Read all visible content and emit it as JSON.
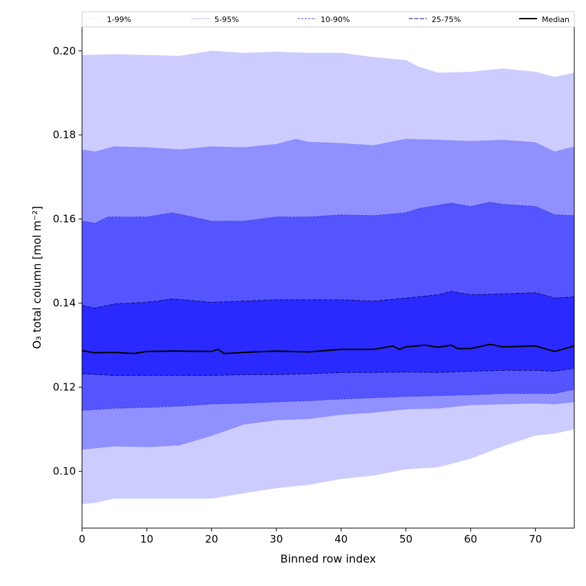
{
  "chart_data": {
    "type": "area",
    "xlabel": "Binned row index",
    "ylabel": "O₃ total column [mol m⁻²]",
    "xlim": [
      0,
      76
    ],
    "ylim": [
      0.0865,
      0.2057
    ],
    "xticks": [
      0,
      10,
      20,
      30,
      40,
      50,
      60,
      70
    ],
    "yticks": [
      0.1,
      0.12,
      0.14,
      0.16,
      0.18,
      0.2
    ],
    "ytick_labels": [
      "0.10",
      "0.12",
      "0.14",
      "0.16",
      "0.18",
      "0.20"
    ],
    "legend_placement": "top, horizontal",
    "bands": [
      {
        "name": "1-99%",
        "color": "#ccccff",
        "line_color": "#d8d8ff",
        "dash": "1,2",
        "lower": [
          [
            0,
            0.0922
          ],
          [
            2,
            0.0925
          ],
          [
            5,
            0.0935
          ],
          [
            10,
            0.0935
          ],
          [
            15,
            0.0935
          ],
          [
            20,
            0.0935
          ],
          [
            25,
            0.0948
          ],
          [
            30,
            0.096
          ],
          [
            35,
            0.0968
          ],
          [
            40,
            0.0982
          ],
          [
            45,
            0.099
          ],
          [
            50,
            0.1005
          ],
          [
            55,
            0.101
          ],
          [
            60,
            0.103
          ],
          [
            65,
            0.106
          ],
          [
            70,
            0.1085
          ],
          [
            73,
            0.109
          ],
          [
            76,
            0.11
          ]
        ],
        "upper": [
          [
            0,
            0.199
          ],
          [
            5,
            0.1992
          ],
          [
            10,
            0.199
          ],
          [
            15,
            0.1988
          ],
          [
            20,
            0.2
          ],
          [
            25,
            0.1995
          ],
          [
            30,
            0.1998
          ],
          [
            35,
            0.1995
          ],
          [
            40,
            0.1995
          ],
          [
            45,
            0.1985
          ],
          [
            50,
            0.1978
          ],
          [
            52,
            0.1962
          ],
          [
            55,
            0.1948
          ],
          [
            60,
            0.195
          ],
          [
            65,
            0.1958
          ],
          [
            70,
            0.195
          ],
          [
            73,
            0.1938
          ],
          [
            76,
            0.1948
          ]
        ]
      },
      {
        "name": "5-95%",
        "color": "#9090ff",
        "line_color": "#7070ff",
        "dash": "1,1.5",
        "lower": [
          [
            0,
            0.1052
          ],
          [
            5,
            0.106
          ],
          [
            10,
            0.1058
          ],
          [
            15,
            0.1062
          ],
          [
            20,
            0.1085
          ],
          [
            25,
            0.1112
          ],
          [
            30,
            0.1122
          ],
          [
            35,
            0.1125
          ],
          [
            40,
            0.1135
          ],
          [
            45,
            0.114
          ],
          [
            50,
            0.1148
          ],
          [
            55,
            0.115
          ],
          [
            60,
            0.1158
          ],
          [
            65,
            0.116
          ],
          [
            70,
            0.1162
          ],
          [
            73,
            0.116
          ],
          [
            76,
            0.1165
          ]
        ],
        "upper": [
          [
            0,
            0.1765
          ],
          [
            2,
            0.176
          ],
          [
            5,
            0.1772
          ],
          [
            10,
            0.177
          ],
          [
            15,
            0.1765
          ],
          [
            20,
            0.1772
          ],
          [
            25,
            0.177
          ],
          [
            30,
            0.1778
          ],
          [
            33,
            0.179
          ],
          [
            35,
            0.1783
          ],
          [
            40,
            0.178
          ],
          [
            45,
            0.1775
          ],
          [
            50,
            0.179
          ],
          [
            55,
            0.1788
          ],
          [
            60,
            0.1785
          ],
          [
            65,
            0.1788
          ],
          [
            70,
            0.1782
          ],
          [
            73,
            0.176
          ],
          [
            76,
            0.1772
          ]
        ]
      },
      {
        "name": "10-90%",
        "color": "#5555ff",
        "line_color": "#3a3ad0",
        "dash": "3,2",
        "lower": [
          [
            0,
            0.1145
          ],
          [
            5,
            0.115
          ],
          [
            10,
            0.1152
          ],
          [
            15,
            0.1155
          ],
          [
            20,
            0.116
          ],
          [
            25,
            0.1162
          ],
          [
            30,
            0.1165
          ],
          [
            35,
            0.1168
          ],
          [
            40,
            0.1172
          ],
          [
            45,
            0.1175
          ],
          [
            50,
            0.1178
          ],
          [
            55,
            0.118
          ],
          [
            60,
            0.1182
          ],
          [
            65,
            0.1185
          ],
          [
            70,
            0.1185
          ],
          [
            73,
            0.1185
          ],
          [
            76,
            0.1195
          ]
        ],
        "upper": [
          [
            0,
            0.1595
          ],
          [
            2,
            0.159
          ],
          [
            4,
            0.1605
          ],
          [
            10,
            0.1605
          ],
          [
            14,
            0.1615
          ],
          [
            20,
            0.1595
          ],
          [
            25,
            0.1595
          ],
          [
            30,
            0.1605
          ],
          [
            35,
            0.1605
          ],
          [
            40,
            0.161
          ],
          [
            45,
            0.1608
          ],
          [
            50,
            0.1615
          ],
          [
            52,
            0.1625
          ],
          [
            57,
            0.1638
          ],
          [
            60,
            0.163
          ],
          [
            63,
            0.164
          ],
          [
            65,
            0.1635
          ],
          [
            70,
            0.163
          ],
          [
            73,
            0.161
          ],
          [
            76,
            0.1608
          ]
        ]
      },
      {
        "name": "25-75%",
        "color": "#2a2aff",
        "line_color": "#0a0a70",
        "dash": "6,2",
        "lower": [
          [
            0,
            0.1232
          ],
          [
            5,
            0.1228
          ],
          [
            10,
            0.1228
          ],
          [
            15,
            0.1228
          ],
          [
            20,
            0.1228
          ],
          [
            25,
            0.123
          ],
          [
            30,
            0.123
          ],
          [
            35,
            0.1232
          ],
          [
            40,
            0.1235
          ],
          [
            45,
            0.1235
          ],
          [
            50,
            0.1236
          ],
          [
            55,
            0.1235
          ],
          [
            60,
            0.1238
          ],
          [
            65,
            0.124
          ],
          [
            70,
            0.124
          ],
          [
            73,
            0.1238
          ],
          [
            76,
            0.1245
          ]
        ],
        "upper": [
          [
            0,
            0.1395
          ],
          [
            2,
            0.1388
          ],
          [
            5,
            0.1398
          ],
          [
            10,
            0.1402
          ],
          [
            14,
            0.141
          ],
          [
            20,
            0.1402
          ],
          [
            25,
            0.1405
          ],
          [
            30,
            0.1408
          ],
          [
            35,
            0.1408
          ],
          [
            40,
            0.1408
          ],
          [
            45,
            0.1405
          ],
          [
            50,
            0.1412
          ],
          [
            55,
            0.142
          ],
          [
            57,
            0.1428
          ],
          [
            60,
            0.142
          ],
          [
            65,
            0.1422
          ],
          [
            70,
            0.1425
          ],
          [
            73,
            0.1412
          ],
          [
            76,
            0.1415
          ]
        ]
      }
    ],
    "median": {
      "name": "Median",
      "color": "#000000",
      "values": [
        [
          0,
          0.1287
        ],
        [
          2,
          0.1282
        ],
        [
          5,
          0.1283
        ],
        [
          8,
          0.128
        ],
        [
          10,
          0.1285
        ],
        [
          14,
          0.1286
        ],
        [
          20,
          0.1285
        ],
        [
          21,
          0.129
        ],
        [
          22,
          0.128
        ],
        [
          25,
          0.1283
        ],
        [
          30,
          0.1286
        ],
        [
          35,
          0.1284
        ],
        [
          40,
          0.129
        ],
        [
          45,
          0.129
        ],
        [
          48,
          0.1298
        ],
        [
          49,
          0.129
        ],
        [
          50,
          0.1296
        ],
        [
          53,
          0.13
        ],
        [
          55,
          0.1295
        ],
        [
          57,
          0.13
        ],
        [
          58,
          0.1292
        ],
        [
          60,
          0.1292
        ],
        [
          63,
          0.1302
        ],
        [
          65,
          0.1296
        ],
        [
          70,
          0.1298
        ],
        [
          73,
          0.1285
        ],
        [
          76,
          0.1298
        ]
      ]
    },
    "legend": [
      "1-99%",
      "5-95%",
      "10-90%",
      "25-75%",
      "Median"
    ]
  }
}
